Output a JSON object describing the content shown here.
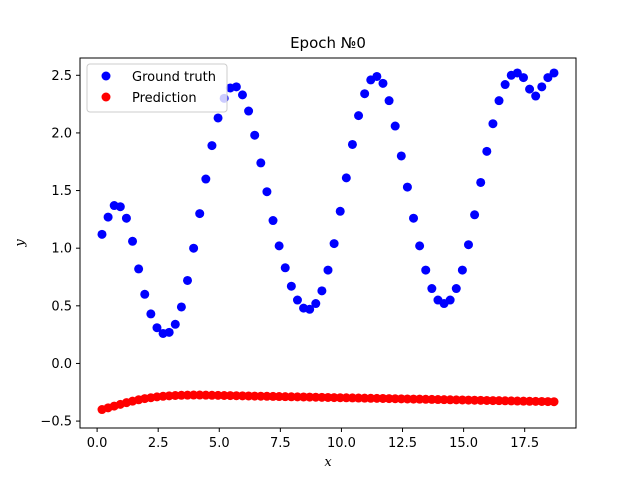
{
  "chart_data": {
    "type": "scatter",
    "title": "Epoch №0",
    "xlabel": "x",
    "ylabel": "y",
    "xlim": [
      -0.7,
      19.6
    ],
    "ylim": [
      -0.56,
      2.65
    ],
    "xticks": [
      0.0,
      2.5,
      5.0,
      7.5,
      10.0,
      12.5,
      15.0,
      17.5
    ],
    "xtick_labels": [
      "0.0",
      "2.5",
      "5.0",
      "7.5",
      "10.0",
      "12.5",
      "15.0",
      "17.5"
    ],
    "yticks": [
      -0.5,
      0.0,
      0.5,
      1.0,
      1.5,
      2.0,
      2.5
    ],
    "ytick_labels": [
      "−0.5",
      "0.0",
      "0.5",
      "1.0",
      "1.5",
      "2.0",
      "2.5"
    ],
    "grid": false,
    "legend_position": "top-left",
    "series": [
      {
        "name": "Ground truth",
        "color": "#0000ff",
        "x": [
          0.2,
          0.45,
          0.7,
          0.95,
          1.2,
          1.45,
          1.7,
          1.95,
          2.2,
          2.45,
          2.7,
          2.95,
          3.2,
          3.45,
          3.7,
          3.95,
          4.2,
          4.45,
          4.7,
          4.95,
          5.2,
          5.45,
          5.7,
          5.95,
          6.2,
          6.45,
          6.7,
          6.95,
          7.2,
          7.45,
          7.7,
          7.95,
          8.2,
          8.45,
          8.7,
          8.95,
          9.2,
          9.45,
          9.7,
          9.95,
          10.2,
          10.45,
          10.7,
          10.95,
          11.2,
          11.45,
          11.7,
          11.95,
          12.2,
          12.45,
          12.7,
          12.95,
          13.2,
          13.45,
          13.7,
          13.95,
          14.2,
          14.45,
          14.7,
          14.95,
          15.2,
          15.45,
          15.7,
          15.95,
          16.2,
          16.45,
          16.7,
          16.95,
          17.2,
          17.45,
          17.7,
          17.95,
          18.2,
          18.45,
          18.7
        ],
        "y": [
          1.12,
          1.27,
          1.37,
          1.36,
          1.26,
          1.06,
          0.82,
          0.6,
          0.43,
          0.31,
          0.26,
          0.27,
          0.34,
          0.49,
          0.72,
          1.0,
          1.3,
          1.6,
          1.89,
          2.13,
          2.3,
          2.39,
          2.4,
          2.33,
          2.19,
          1.98,
          1.74,
          1.49,
          1.24,
          1.02,
          0.83,
          0.67,
          0.55,
          0.48,
          0.47,
          0.52,
          0.63,
          0.81,
          1.04,
          1.32,
          1.61,
          1.9,
          2.15,
          2.34,
          2.46,
          2.49,
          2.43,
          2.28,
          2.06,
          1.8,
          1.53,
          1.26,
          1.02,
          0.81,
          0.65,
          0.55,
          0.52,
          0.55,
          0.65,
          0.81,
          1.03,
          1.29,
          1.57,
          1.84,
          2.08,
          2.28,
          2.42,
          2.5,
          2.52,
          2.48,
          2.38,
          2.32,
          2.4,
          2.48,
          2.52
        ]
      },
      {
        "name": "Prediction",
        "color": "#ff0000",
        "x": [
          0.2,
          0.45,
          0.7,
          0.95,
          1.2,
          1.45,
          1.7,
          1.95,
          2.2,
          2.45,
          2.7,
          2.95,
          3.2,
          3.45,
          3.7,
          3.95,
          4.2,
          4.45,
          4.7,
          4.95,
          5.2,
          5.45,
          5.7,
          5.95,
          6.2,
          6.45,
          6.7,
          6.95,
          7.2,
          7.45,
          7.7,
          7.95,
          8.2,
          8.45,
          8.7,
          8.95,
          9.2,
          9.45,
          9.7,
          9.95,
          10.2,
          10.45,
          10.7,
          10.95,
          11.2,
          11.45,
          11.7,
          11.95,
          12.2,
          12.45,
          12.7,
          12.95,
          13.2,
          13.45,
          13.7,
          13.95,
          14.2,
          14.45,
          14.7,
          14.95,
          15.2,
          15.45,
          15.7,
          15.95,
          16.2,
          16.45,
          16.7,
          16.95,
          17.2,
          17.45,
          17.7,
          17.95,
          18.2,
          18.45,
          18.7
        ],
        "y": [
          -0.4,
          -0.385,
          -0.37,
          -0.355,
          -0.34,
          -0.327,
          -0.315,
          -0.305,
          -0.297,
          -0.29,
          -0.285,
          -0.281,
          -0.278,
          -0.276,
          -0.275,
          -0.274,
          -0.274,
          -0.275,
          -0.276,
          -0.277,
          -0.278,
          -0.279,
          -0.28,
          -0.281,
          -0.282,
          -0.283,
          -0.284,
          -0.285,
          -0.286,
          -0.287,
          -0.288,
          -0.289,
          -0.29,
          -0.291,
          -0.292,
          -0.293,
          -0.294,
          -0.295,
          -0.296,
          -0.297,
          -0.298,
          -0.299,
          -0.3,
          -0.301,
          -0.302,
          -0.303,
          -0.304,
          -0.305,
          -0.306,
          -0.307,
          -0.308,
          -0.309,
          -0.31,
          -0.311,
          -0.312,
          -0.313,
          -0.314,
          -0.315,
          -0.316,
          -0.317,
          -0.318,
          -0.319,
          -0.32,
          -0.321,
          -0.322,
          -0.323,
          -0.324,
          -0.325,
          -0.326,
          -0.327,
          -0.328,
          -0.329,
          -0.33,
          -0.331,
          -0.332
        ]
      }
    ]
  }
}
